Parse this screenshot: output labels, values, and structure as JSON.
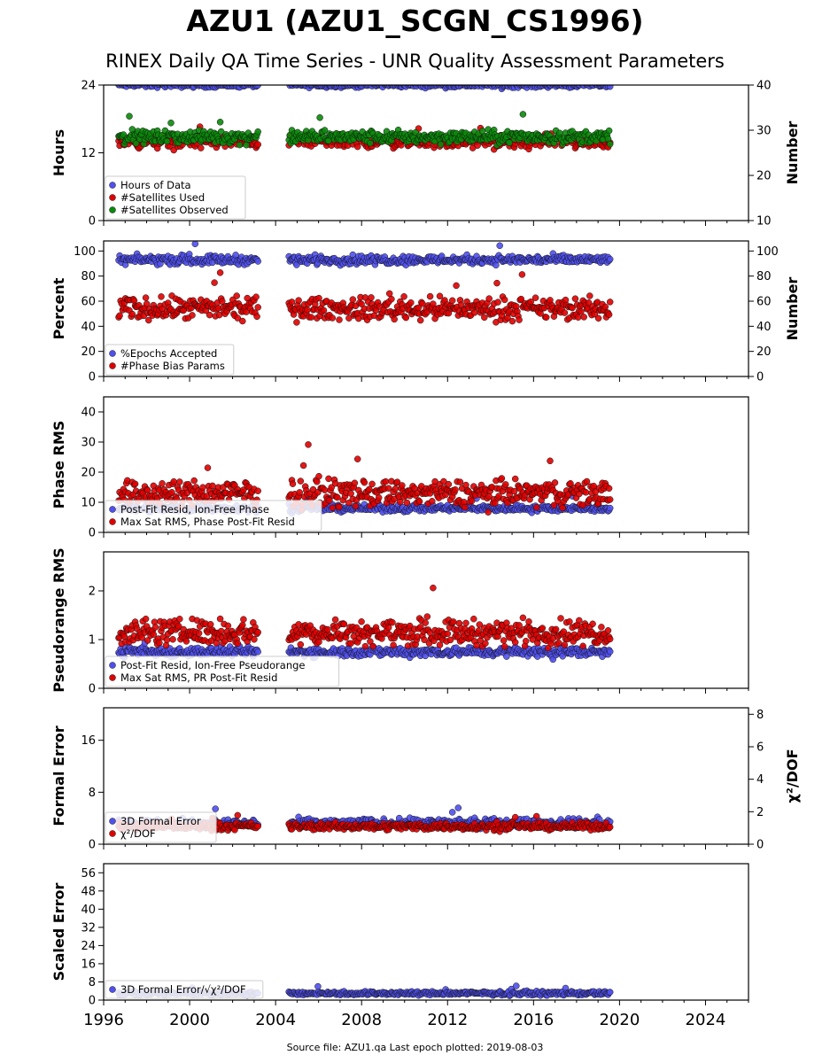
{
  "title": "AZU1 (AZU1_SCGN_CS1996)",
  "subtitle": "RINEX Daily QA Time Series - UNR Quality Assessment Parameters",
  "footer": "Source file: AZU1.qa Last epoch plotted: 2019-08-03",
  "chart_data": {
    "type": "scatter",
    "x_axis": {
      "range": [
        1996,
        2026
      ],
      "ticks": [
        "1996",
        "2000",
        "2004",
        "2008",
        "2012",
        "2016",
        "2020",
        "2024"
      ],
      "tick_values": [
        1996,
        2000,
        2004,
        2008,
        2012,
        2016,
        2020,
        2024
      ]
    },
    "data_gap": [
      2003.2,
      2004.6
    ],
    "time_range": [
      1996.7,
      2019.59
    ],
    "panels": [
      {
        "ylabel": "Hours",
        "ylabel_right": "Number",
        "ylim": [
          0,
          24
        ],
        "ylim_right": [
          10,
          40
        ],
        "yticks": [
          "0",
          "12",
          "24"
        ],
        "yticks_right": [
          "10",
          "20",
          "30",
          "40"
        ],
        "legend_placement": "lower-left",
        "series": [
          {
            "name": "Hours of Data",
            "color": "#5050ee",
            "axis": "left",
            "typical": 24.0,
            "spread": 0.3
          },
          {
            "name": "#Satellites Used",
            "color": "#e00000",
            "axis": "right",
            "typical": 27.5,
            "spread": 1.0
          },
          {
            "name": "#Satellites Observed",
            "color": "#0a8a0a",
            "axis": "right",
            "typical": 28.5,
            "spread": 1.0
          }
        ]
      },
      {
        "ylabel": "Percent",
        "ylabel_right": "Number",
        "ylim": [
          0,
          108
        ],
        "ylim_right": [
          0,
          108
        ],
        "yticks": [
          "0",
          "20",
          "40",
          "60",
          "80",
          "100"
        ],
        "yticks_right": [
          "0",
          "20",
          "40",
          "60",
          "80",
          "100"
        ],
        "legend_placement": "lower-left",
        "series": [
          {
            "name": "%Epochs Accepted",
            "color": "#5050ee",
            "axis": "left",
            "typical": 93,
            "spread": 2.5
          },
          {
            "name": "#Phase Bias Params",
            "color": "#e00000",
            "axis": "right",
            "typical": 54,
            "spread": 6
          }
        ]
      },
      {
        "ylabel": "Phase RMS",
        "ylim": [
          0,
          45
        ],
        "yticks": [
          "0",
          "10",
          "20",
          "30",
          "40"
        ],
        "legend_placement": "lower-left",
        "series": [
          {
            "name": "Post-Fit Resid, Ion-Free Phase",
            "color": "#5050ee",
            "axis": "left",
            "typical": 8,
            "spread": 0.8
          },
          {
            "name": "Max Sat RMS, Phase Post-Fit Resid",
            "color": "#e00000",
            "axis": "left",
            "typical": 13,
            "spread": 3
          }
        ]
      },
      {
        "ylabel": "Pseudorange RMS",
        "ylim": [
          0,
          2.8
        ],
        "yticks": [
          "0",
          "1",
          "2"
        ],
        "legend_placement": "lower-left",
        "series": [
          {
            "name": "Post-Fit Resid, Ion-Free Pseudorange",
            "color": "#5050ee",
            "axis": "left",
            "typical": 0.75,
            "spread": 0.07
          },
          {
            "name": "Max Sat RMS, PR Post-Fit Resid",
            "color": "#e00000",
            "axis": "left",
            "typical": 1.15,
            "spread": 0.18
          }
        ]
      },
      {
        "ylabel": "Formal Error",
        "ylabel_right": "χ²/DOF",
        "ylim": [
          0,
          21
        ],
        "ylim_right": [
          0,
          8.4
        ],
        "yticks": [
          "0",
          "8",
          "16"
        ],
        "yticks_right": [
          "0",
          "2",
          "4",
          "6",
          "8"
        ],
        "legend_placement": "lower-left",
        "series": [
          {
            "name": "3D Formal Error",
            "color": "#5050ee",
            "axis": "left",
            "typical": 3.2,
            "spread": 0.5
          },
          {
            "name": "χ²/DOF",
            "color": "#e00000",
            "axis": "right",
            "typical": 1.1,
            "spread": 0.15
          }
        ]
      },
      {
        "ylabel": "Scaled Error",
        "ylim": [
          0,
          60
        ],
        "yticks": [
          "0",
          "8",
          "16",
          "24",
          "32",
          "40",
          "48",
          "56"
        ],
        "legend_placement": "lower-left",
        "series": [
          {
            "name": "3D Formal Error/√χ²/DOF",
            "color": "#5050ee",
            "axis": "left",
            "typical": 3,
            "spread": 0.6
          }
        ]
      }
    ]
  }
}
